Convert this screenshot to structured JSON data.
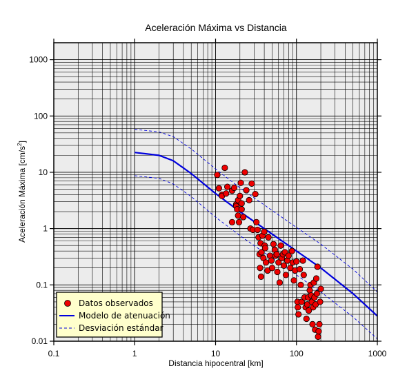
{
  "chart_data": {
    "type": "scatter",
    "title": "Aceleración Máxima vs Distancia",
    "xlabel": "Distancia hipocentral [km]",
    "ylabel_main": "Aceleración Máxima [cm/s",
    "ylabel_sup": "2",
    "ylabel_end": "]",
    "x_scale": "log",
    "y_scale": "log",
    "xlim": [
      0.1,
      1000
    ],
    "ylim": [
      0.01,
      2000
    ],
    "x_ticks": [
      {
        "value": 0.1,
        "label": "0.1"
      },
      {
        "value": 1,
        "label": "1"
      },
      {
        "value": 10,
        "label": "10"
      },
      {
        "value": 100,
        "label": "100"
      },
      {
        "value": 1000,
        "label": "1000"
      }
    ],
    "y_ticks": [
      {
        "value": 0.01,
        "label": "0.01"
      },
      {
        "value": 0.1,
        "label": "0.1"
      },
      {
        "value": 1,
        "label": "1"
      },
      {
        "value": 10,
        "label": "10"
      },
      {
        "value": 100,
        "label": "100"
      },
      {
        "value": 1000,
        "label": "1000"
      }
    ],
    "grid": true,
    "legend_position": "bottom-left",
    "legend": [
      {
        "label": "Datos observados",
        "kind": "marker",
        "color": "#ee0000"
      },
      {
        "label": "Modelo de atenuación",
        "kind": "solid",
        "color": "#0000dd"
      },
      {
        "label": "Desviación estándar",
        "kind": "dashed",
        "color": "#0000dd"
      }
    ],
    "colors": {
      "plot_background": "#ececec",
      "grid": "#000000",
      "marker_fill": "#ee0000",
      "marker_edge": "#000000",
      "model_line": "#0000dd",
      "legend_background": "#ffffcc"
    },
    "series": [
      {
        "name": "Modelo de atenuación",
        "kind": "line",
        "style": "solid",
        "points": [
          [
            1,
            22.5
          ],
          [
            2,
            20
          ],
          [
            3,
            16
          ],
          [
            5,
            9.5
          ],
          [
            10,
            4.2
          ],
          [
            20,
            2
          ],
          [
            50,
            0.8
          ],
          [
            100,
            0.4
          ],
          [
            200,
            0.2
          ],
          [
            500,
            0.07
          ],
          [
            1000,
            0.028
          ]
        ]
      },
      {
        "name": "Desviación estándar (superior)",
        "kind": "line",
        "style": "dashed",
        "points": [
          [
            1,
            58
          ],
          [
            2,
            52
          ],
          [
            3,
            43
          ],
          [
            5,
            26
          ],
          [
            10,
            11.5
          ],
          [
            20,
            5.3
          ],
          [
            50,
            2.1
          ],
          [
            100,
            1.05
          ],
          [
            200,
            0.53
          ],
          [
            500,
            0.19
          ],
          [
            1000,
            0.075
          ]
        ]
      },
      {
        "name": "Desviación estándar (inferior)",
        "kind": "line",
        "style": "dashed",
        "points": [
          [
            1,
            8.7
          ],
          [
            2,
            7.8
          ],
          [
            3,
            6.2
          ],
          [
            5,
            3.7
          ],
          [
            10,
            1.6
          ],
          [
            20,
            0.75
          ],
          [
            50,
            0.3
          ],
          [
            100,
            0.15
          ],
          [
            200,
            0.075
          ],
          [
            500,
            0.027
          ],
          [
            1000,
            0.011
          ]
        ]
      },
      {
        "name": "Datos observados",
        "kind": "scatter",
        "points": [
          [
            10.5,
            9
          ],
          [
            11,
            5.2
          ],
          [
            12,
            4
          ],
          [
            12,
            3.8
          ],
          [
            13,
            12
          ],
          [
            13.5,
            4.2
          ],
          [
            14,
            5.5
          ],
          [
            16,
            4.7
          ],
          [
            16,
            1.3
          ],
          [
            17,
            5.3
          ],
          [
            18,
            2.7
          ],
          [
            18,
            2.5
          ],
          [
            18.5,
            2.2
          ],
          [
            19,
            3.2
          ],
          [
            19,
            1.7
          ],
          [
            19.5,
            1.3
          ],
          [
            20,
            3.8
          ],
          [
            20.5,
            6.5
          ],
          [
            21,
            2.8
          ],
          [
            21,
            2.2
          ],
          [
            22,
            1.6
          ],
          [
            23,
            10
          ],
          [
            24,
            4.8
          ],
          [
            26,
            3.2
          ],
          [
            27,
            1
          ],
          [
            28,
            6.3
          ],
          [
            29,
            0.95
          ],
          [
            31,
            4.1
          ],
          [
            32,
            1.3
          ],
          [
            33,
            0.95
          ],
          [
            34,
            0.7
          ],
          [
            35,
            0.35
          ],
          [
            35.5,
            0.2
          ],
          [
            36,
            0.55
          ],
          [
            36.5,
            0.14
          ],
          [
            37,
            0.38
          ],
          [
            38,
            0.75
          ],
          [
            39,
            0.3
          ],
          [
            40,
            0.88
          ],
          [
            40.5,
            0.5
          ],
          [
            41,
            0.45
          ],
          [
            42,
            0.25
          ],
          [
            44,
            0.18
          ],
          [
            45,
            0.7
          ],
          [
            47,
            0.33
          ],
          [
            49,
            0.27
          ],
          [
            50,
            0.2
          ],
          [
            52,
            0.53
          ],
          [
            54,
            0.42
          ],
          [
            55,
            0.33
          ],
          [
            57,
            0.35
          ],
          [
            58,
            0.17
          ],
          [
            60,
            0.25
          ],
          [
            62,
            0.11
          ],
          [
            64,
            0.5
          ],
          [
            66,
            0.3
          ],
          [
            68,
            0.35
          ],
          [
            70,
            0.22
          ],
          [
            72,
            0.38
          ],
          [
            74,
            0.15
          ],
          [
            77,
            0.27
          ],
          [
            80,
            0.33
          ],
          [
            84,
            0.2
          ],
          [
            88,
            0.4
          ],
          [
            90,
            0.25
          ],
          [
            93,
            0.12
          ],
          [
            96,
            0.18
          ],
          [
            100,
            0.26
          ],
          [
            103,
            0.05
          ],
          [
            104,
            0.04
          ],
          [
            106,
            0.03
          ],
          [
            110,
            0.19
          ],
          [
            113,
            0.1
          ],
          [
            116,
            0.05
          ],
          [
            120,
            0.27
          ],
          [
            123,
            0.15
          ],
          [
            126,
            0.06
          ],
          [
            130,
            0.04
          ],
          [
            133,
            0.025
          ],
          [
            136,
            0.045
          ],
          [
            139,
            0.06
          ],
          [
            142,
            0.035
          ],
          [
            146,
            0.08
          ],
          [
            149,
            0.1
          ],
          [
            152,
            0.065
          ],
          [
            155,
            0.05
          ],
          [
            158,
            0.02
          ],
          [
            161,
            0.04
          ],
          [
            164,
            0.11
          ],
          [
            167,
            0.06
          ],
          [
            170,
            0.016
          ],
          [
            173,
            0.045
          ],
          [
            176,
            0.13
          ],
          [
            179,
            0.07
          ],
          [
            182,
            0.21
          ],
          [
            185,
            0.012
          ],
          [
            188,
            0.015
          ],
          [
            192,
            0.02
          ],
          [
            196,
            0.05
          ],
          [
            200,
            0.085
          ]
        ]
      }
    ]
  }
}
